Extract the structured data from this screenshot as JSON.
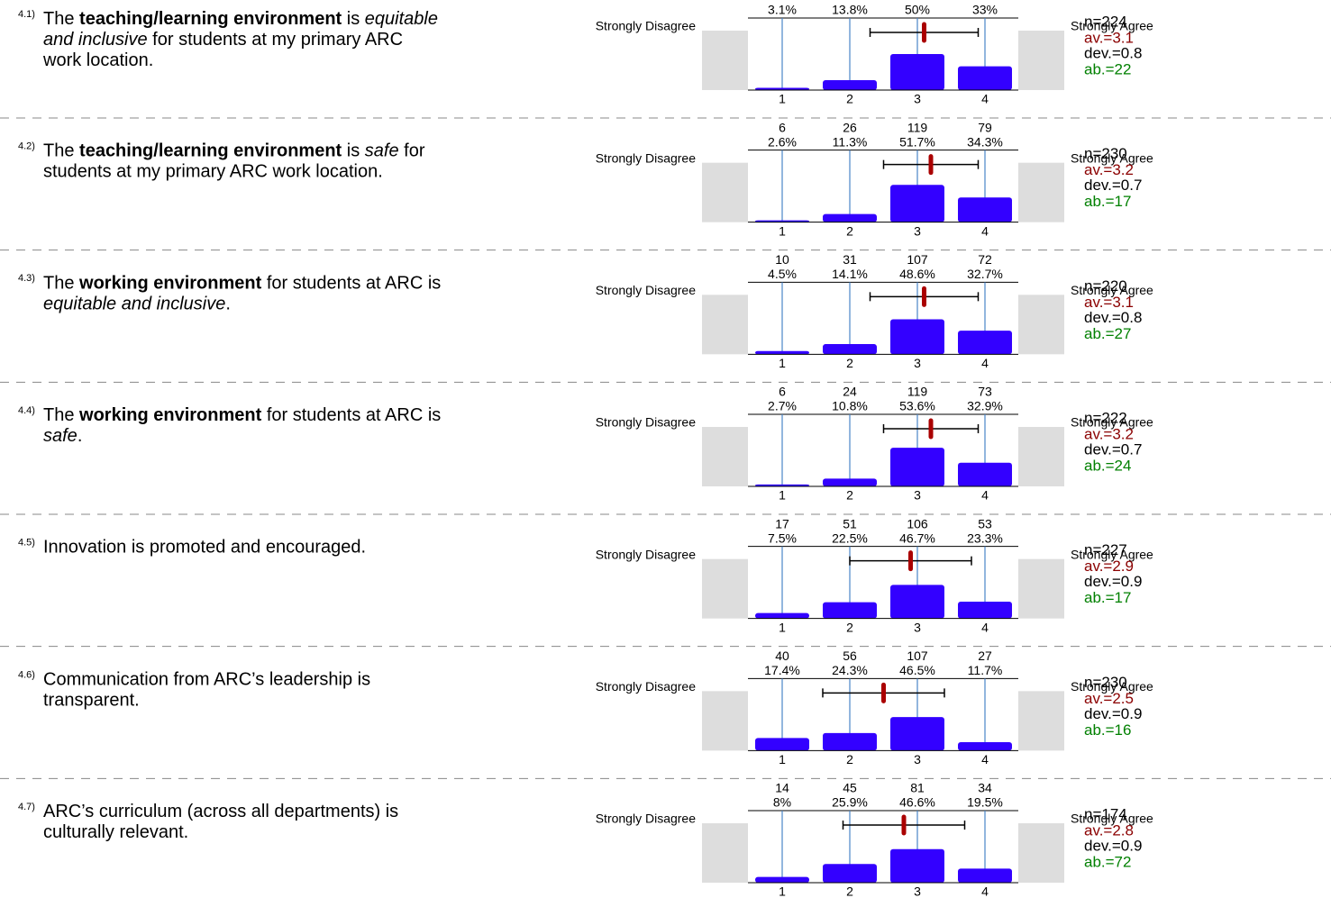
{
  "left_label": "Strongly Disagree",
  "right_label": "Strongly Agree",
  "scale": [
    1,
    2,
    3,
    4
  ],
  "items": [
    {
      "number": "4.1)",
      "question": [
        [
          {
            "text": "The ",
            "style": "normal"
          },
          {
            "text": "teaching/learning environment",
            "style": "bold"
          },
          {
            "text": " is ",
            "style": "normal"
          },
          {
            "text": "equitable",
            "style": "italic"
          }
        ],
        [
          {
            "text": "and inclusive",
            "style": "italic"
          },
          {
            "text": " for students at my primary ARC",
            "style": "normal"
          }
        ],
        [
          {
            "text": "work location.",
            "style": "normal"
          }
        ]
      ],
      "counts": null,
      "percents": [
        3.1,
        13.8,
        50,
        33
      ],
      "percent_labels": [
        "3.1%",
        "13.8%",
        "50%",
        "33%"
      ],
      "n": "n=224",
      "av": {
        "value": 3.1,
        "label": "av.=3.1"
      },
      "dev": {
        "value": 0.8,
        "label": "dev.=0.8"
      },
      "ab": "ab.=22"
    },
    {
      "number": "4.2)",
      "question": [
        [
          {
            "text": "The ",
            "style": "normal"
          },
          {
            "text": "teaching/learning environment",
            "style": "bold"
          },
          {
            "text": " is ",
            "style": "normal"
          },
          {
            "text": "safe",
            "style": "italic"
          },
          {
            "text": " for",
            "style": "normal"
          }
        ],
        [
          {
            "text": "students at my primary ARC work location.",
            "style": "normal"
          }
        ]
      ],
      "counts": [
        6,
        26,
        119,
        79
      ],
      "percents": [
        2.6,
        11.3,
        51.7,
        34.3
      ],
      "percent_labels": [
        "2.6%",
        "11.3%",
        "51.7%",
        "34.3%"
      ],
      "n": "n=230",
      "av": {
        "value": 3.2,
        "label": "av.=3.2"
      },
      "dev": {
        "value": 0.7,
        "label": "dev.=0.7"
      },
      "ab": "ab.=17"
    },
    {
      "number": "4.3)",
      "question": [
        [
          {
            "text": "The ",
            "style": "normal"
          },
          {
            "text": "working environment",
            "style": "bold"
          },
          {
            "text": " for students at ARC is",
            "style": "normal"
          }
        ],
        [
          {
            "text": "equitable and inclusive",
            "style": "italic"
          },
          {
            "text": ".",
            "style": "normal"
          }
        ]
      ],
      "counts": [
        10,
        31,
        107,
        72
      ],
      "percents": [
        4.5,
        14.1,
        48.6,
        32.7
      ],
      "percent_labels": [
        "4.5%",
        "14.1%",
        "48.6%",
        "32.7%"
      ],
      "n": "n=220",
      "av": {
        "value": 3.1,
        "label": "av.=3.1"
      },
      "dev": {
        "value": 0.8,
        "label": "dev.=0.8"
      },
      "ab": "ab.=27"
    },
    {
      "number": "4.4)",
      "question": [
        [
          {
            "text": "The ",
            "style": "normal"
          },
          {
            "text": "working environment",
            "style": "bold"
          },
          {
            "text": " for students at ARC is",
            "style": "normal"
          }
        ],
        [
          {
            "text": "safe",
            "style": "italic"
          },
          {
            "text": ".",
            "style": "normal"
          }
        ]
      ],
      "counts": [
        6,
        24,
        119,
        73
      ],
      "percents": [
        2.7,
        10.8,
        53.6,
        32.9
      ],
      "percent_labels": [
        "2.7%",
        "10.8%",
        "53.6%",
        "32.9%"
      ],
      "n": "n=222",
      "av": {
        "value": 3.2,
        "label": "av.=3.2"
      },
      "dev": {
        "value": 0.7,
        "label": "dev.=0.7"
      },
      "ab": "ab.=24"
    },
    {
      "number": "4.5)",
      "question": [
        [
          {
            "text": "Innovation is promoted and encouraged.",
            "style": "normal"
          }
        ]
      ],
      "counts": [
        17,
        51,
        106,
        53
      ],
      "percents": [
        7.5,
        22.5,
        46.7,
        23.3
      ],
      "percent_labels": [
        "7.5%",
        "22.5%",
        "46.7%",
        "23.3%"
      ],
      "n": "n=227",
      "av": {
        "value": 2.9,
        "label": "av.=2.9"
      },
      "dev": {
        "value": 0.9,
        "label": "dev.=0.9"
      },
      "ab": "ab.=17"
    },
    {
      "number": "4.6)",
      "question": [
        [
          {
            "text": "Communication from ARC’s leadership is",
            "style": "normal"
          }
        ],
        [
          {
            "text": "transparent.",
            "style": "normal"
          }
        ]
      ],
      "counts": [
        40,
        56,
        107,
        27
      ],
      "percents": [
        17.4,
        24.3,
        46.5,
        11.7
      ],
      "percent_labels": [
        "17.4%",
        "24.3%",
        "46.5%",
        "11.7%"
      ],
      "n": "n=230",
      "av": {
        "value": 2.5,
        "label": "av.=2.5"
      },
      "dev": {
        "value": 0.9,
        "label": "dev.=0.9"
      },
      "ab": "ab.=16"
    },
    {
      "number": "4.7)",
      "question": [
        [
          {
            "text": "ARC’s curriculum (across all departments) is",
            "style": "normal"
          }
        ],
        [
          {
            "text": "culturally relevant.",
            "style": "normal"
          }
        ]
      ],
      "counts": [
        14,
        45,
        81,
        34
      ],
      "percents": [
        8,
        25.9,
        46.6,
        19.5
      ],
      "percent_labels": [
        "8%",
        "25.9%",
        "46.6%",
        "19.5%"
      ],
      "n": "n=174",
      "av": {
        "value": 2.8,
        "label": "av.=2.8"
      },
      "dev": {
        "value": 0.9,
        "label": "dev.=0.9"
      },
      "ab": "ab.=72"
    }
  ]
}
